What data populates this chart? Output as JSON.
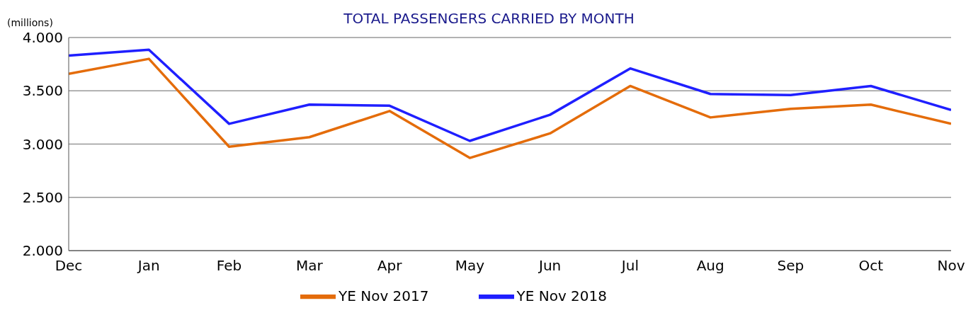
{
  "chart_data": {
    "type": "line",
    "title": "TOTAL PASSENGERS CARRIED BY MONTH",
    "ylabel": "(millions)",
    "categories": [
      "Dec",
      "Jan",
      "Feb",
      "Mar",
      "Apr",
      "May",
      "Jun",
      "Jul",
      "Aug",
      "Sep",
      "Oct",
      "Nov"
    ],
    "series": [
      {
        "name": "YE Nov 2017",
        "color": "#e46c0a",
        "values": [
          3.66,
          3.8,
          2.975,
          3.065,
          3.31,
          2.87,
          3.1,
          3.545,
          3.25,
          3.33,
          3.37,
          3.19
        ]
      },
      {
        "name": "YE Nov 2018",
        "color": "#1f1fff",
        "values": [
          3.83,
          3.885,
          3.19,
          3.37,
          3.36,
          3.03,
          3.275,
          3.71,
          3.47,
          3.46,
          3.545,
          3.32
        ]
      }
    ],
    "ylim": [
      2,
      4
    ],
    "yticks": [
      {
        "value": 2,
        "label": "2.000"
      },
      {
        "value": 2.5,
        "label": "2.500"
      },
      {
        "value": 3,
        "label": "3.000"
      },
      {
        "value": 3.5,
        "label": "3.500"
      },
      {
        "value": 4,
        "label": "4.000"
      }
    ],
    "grid": "y",
    "legend": "bottom",
    "marker": "none",
    "line_style": "solid"
  }
}
